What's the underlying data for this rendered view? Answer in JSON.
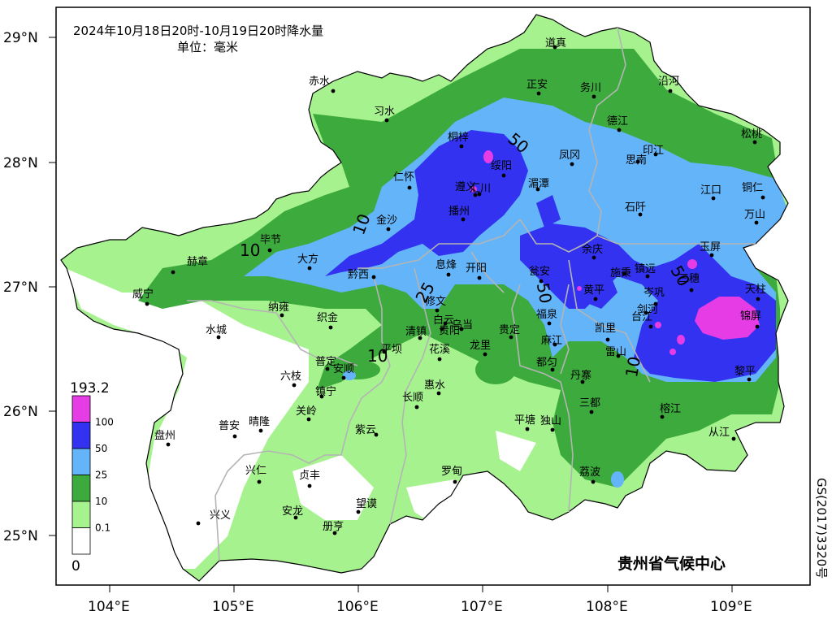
{
  "title": {
    "line1": "2024年10月18日20时-10月19日20时降水量",
    "line2": "单位：毫米"
  },
  "axes": {
    "lat_ticks": [
      "29°N",
      "28°N",
      "27°N",
      "26°N",
      "25°N"
    ],
    "lon_ticks": [
      "104°E",
      "105°E",
      "106°E",
      "107°E",
      "108°E",
      "109°E"
    ]
  },
  "legend": {
    "max_label": "193.2",
    "min_label": "0",
    "classes": [
      {
        "label": "100",
        "color": "#e63ce6"
      },
      {
        "label": "50",
        "color": "#3232f0"
      },
      {
        "label": "25",
        "color": "#64b4fa"
      },
      {
        "label": "10",
        "color": "#3caa3c"
      },
      {
        "label": "0.1",
        "color": "#a6f28f"
      },
      {
        "label": "",
        "color": "#ffffff"
      }
    ]
  },
  "contour_labels": [
    "50",
    "10",
    "10",
    "25",
    "50",
    "50",
    "10",
    "10"
  ],
  "cities": [
    {
      "name": "道真"
    },
    {
      "name": "沿河"
    },
    {
      "name": "赤水"
    },
    {
      "name": "正安"
    },
    {
      "name": "务川"
    },
    {
      "name": "习水"
    },
    {
      "name": "德江"
    },
    {
      "name": "松桃"
    },
    {
      "name": "桐梓"
    },
    {
      "name": "印江"
    },
    {
      "name": "凤冈"
    },
    {
      "name": "思南"
    },
    {
      "name": "绥阳"
    },
    {
      "name": "仁怀"
    },
    {
      "name": "湄潭"
    },
    {
      "name": "遵义"
    },
    {
      "name": "汇川"
    },
    {
      "name": "江口"
    },
    {
      "name": "铜仁"
    },
    {
      "name": "石阡"
    },
    {
      "name": "播州"
    },
    {
      "name": "万山"
    },
    {
      "name": "金沙"
    },
    {
      "name": "毕节"
    },
    {
      "name": "玉屏"
    },
    {
      "name": "大方"
    },
    {
      "name": "赫章"
    },
    {
      "name": "余庆"
    },
    {
      "name": "黔西"
    },
    {
      "name": "息烽"
    },
    {
      "name": "开阳"
    },
    {
      "name": "瓮安"
    },
    {
      "name": "施秉"
    },
    {
      "name": "镇远"
    },
    {
      "name": "天柱"
    },
    {
      "name": "岑巩"
    },
    {
      "name": "三穗"
    },
    {
      "name": "威宁"
    },
    {
      "name": "黄平"
    },
    {
      "name": "修文"
    },
    {
      "name": "纳雍"
    },
    {
      "name": "锦屏"
    },
    {
      "name": "白云"
    },
    {
      "name": "乌当"
    },
    {
      "name": "织金"
    },
    {
      "name": "福泉"
    },
    {
      "name": "剑河"
    },
    {
      "name": "台江"
    },
    {
      "name": "清镇"
    },
    {
      "name": "贵阳"
    },
    {
      "name": "贵定"
    },
    {
      "name": "凯里"
    },
    {
      "name": "水城"
    },
    {
      "name": "麻江"
    },
    {
      "name": "平坝"
    },
    {
      "name": "花溪"
    },
    {
      "name": "龙里"
    },
    {
      "name": "雷山"
    },
    {
      "name": "普定"
    },
    {
      "name": "都匀"
    },
    {
      "name": "六枝"
    },
    {
      "name": "安顺"
    },
    {
      "name": "黎平"
    },
    {
      "name": "丹寨"
    },
    {
      "name": "惠水"
    },
    {
      "name": "镇宁"
    },
    {
      "name": "长顺"
    },
    {
      "name": "三都"
    },
    {
      "name": "关岭"
    },
    {
      "name": "榕江"
    },
    {
      "name": "普安"
    },
    {
      "name": "晴隆"
    },
    {
      "name": "平塘"
    },
    {
      "name": "独山"
    },
    {
      "name": "紫云"
    },
    {
      "name": "盘州"
    },
    {
      "name": "从江"
    },
    {
      "name": "兴仁"
    },
    {
      "name": "贞丰"
    },
    {
      "name": "罗甸"
    },
    {
      "name": "荔波"
    },
    {
      "name": "兴义"
    },
    {
      "name": "安龙"
    },
    {
      "name": "望谟"
    },
    {
      "name": "册亨"
    }
  ],
  "org": "贵州省气候中心",
  "side_code": "GS(2017)3320号"
}
